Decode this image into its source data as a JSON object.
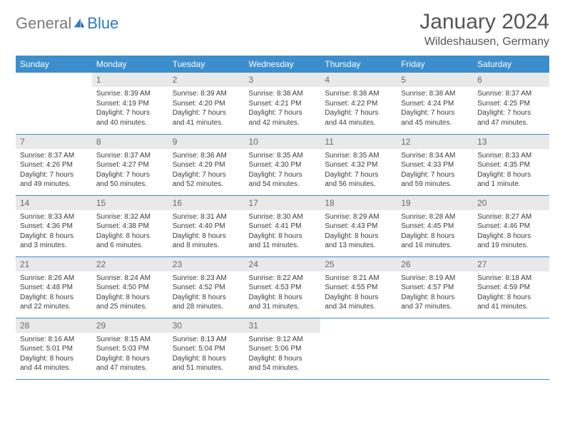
{
  "logo": {
    "part1": "General",
    "part2": "Blue"
  },
  "title": "January 2024",
  "location": "Wildeshausen, Germany",
  "colors": {
    "header_bg": "#3d8ecd",
    "header_text": "#ffffff",
    "daynum_bg": "#e9e9e9",
    "daynum_text": "#6a6a6a",
    "body_text": "#3c3c3c",
    "rule": "#3d8ecd",
    "logo_gray": "#7a7a7a",
    "logo_blue": "#2f7ac0"
  },
  "weekdays": [
    "Sunday",
    "Monday",
    "Tuesday",
    "Wednesday",
    "Thursday",
    "Friday",
    "Saturday"
  ],
  "weeks": [
    [
      null,
      {
        "n": "1",
        "sunrise": "Sunrise: 8:39 AM",
        "sunset": "Sunset: 4:19 PM",
        "daylight1": "Daylight: 7 hours",
        "daylight2": "and 40 minutes."
      },
      {
        "n": "2",
        "sunrise": "Sunrise: 8:39 AM",
        "sunset": "Sunset: 4:20 PM",
        "daylight1": "Daylight: 7 hours",
        "daylight2": "and 41 minutes."
      },
      {
        "n": "3",
        "sunrise": "Sunrise: 8:38 AM",
        "sunset": "Sunset: 4:21 PM",
        "daylight1": "Daylight: 7 hours",
        "daylight2": "and 42 minutes."
      },
      {
        "n": "4",
        "sunrise": "Sunrise: 8:38 AM",
        "sunset": "Sunset: 4:22 PM",
        "daylight1": "Daylight: 7 hours",
        "daylight2": "and 44 minutes."
      },
      {
        "n": "5",
        "sunrise": "Sunrise: 8:38 AM",
        "sunset": "Sunset: 4:24 PM",
        "daylight1": "Daylight: 7 hours",
        "daylight2": "and 45 minutes."
      },
      {
        "n": "6",
        "sunrise": "Sunrise: 8:37 AM",
        "sunset": "Sunset: 4:25 PM",
        "daylight1": "Daylight: 7 hours",
        "daylight2": "and 47 minutes."
      }
    ],
    [
      {
        "n": "7",
        "sunrise": "Sunrise: 8:37 AM",
        "sunset": "Sunset: 4:26 PM",
        "daylight1": "Daylight: 7 hours",
        "daylight2": "and 49 minutes."
      },
      {
        "n": "8",
        "sunrise": "Sunrise: 8:37 AM",
        "sunset": "Sunset: 4:27 PM",
        "daylight1": "Daylight: 7 hours",
        "daylight2": "and 50 minutes."
      },
      {
        "n": "9",
        "sunrise": "Sunrise: 8:36 AM",
        "sunset": "Sunset: 4:29 PM",
        "daylight1": "Daylight: 7 hours",
        "daylight2": "and 52 minutes."
      },
      {
        "n": "10",
        "sunrise": "Sunrise: 8:35 AM",
        "sunset": "Sunset: 4:30 PM",
        "daylight1": "Daylight: 7 hours",
        "daylight2": "and 54 minutes."
      },
      {
        "n": "11",
        "sunrise": "Sunrise: 8:35 AM",
        "sunset": "Sunset: 4:32 PM",
        "daylight1": "Daylight: 7 hours",
        "daylight2": "and 56 minutes."
      },
      {
        "n": "12",
        "sunrise": "Sunrise: 8:34 AM",
        "sunset": "Sunset: 4:33 PM",
        "daylight1": "Daylight: 7 hours",
        "daylight2": "and 59 minutes."
      },
      {
        "n": "13",
        "sunrise": "Sunrise: 8:33 AM",
        "sunset": "Sunset: 4:35 PM",
        "daylight1": "Daylight: 8 hours",
        "daylight2": "and 1 minute."
      }
    ],
    [
      {
        "n": "14",
        "sunrise": "Sunrise: 8:33 AM",
        "sunset": "Sunset: 4:36 PM",
        "daylight1": "Daylight: 8 hours",
        "daylight2": "and 3 minutes."
      },
      {
        "n": "15",
        "sunrise": "Sunrise: 8:32 AM",
        "sunset": "Sunset: 4:38 PM",
        "daylight1": "Daylight: 8 hours",
        "daylight2": "and 6 minutes."
      },
      {
        "n": "16",
        "sunrise": "Sunrise: 8:31 AM",
        "sunset": "Sunset: 4:40 PM",
        "daylight1": "Daylight: 8 hours",
        "daylight2": "and 8 minutes."
      },
      {
        "n": "17",
        "sunrise": "Sunrise: 8:30 AM",
        "sunset": "Sunset: 4:41 PM",
        "daylight1": "Daylight: 8 hours",
        "daylight2": "and 11 minutes."
      },
      {
        "n": "18",
        "sunrise": "Sunrise: 8:29 AM",
        "sunset": "Sunset: 4:43 PM",
        "daylight1": "Daylight: 8 hours",
        "daylight2": "and 13 minutes."
      },
      {
        "n": "19",
        "sunrise": "Sunrise: 8:28 AM",
        "sunset": "Sunset: 4:45 PM",
        "daylight1": "Daylight: 8 hours",
        "daylight2": "and 16 minutes."
      },
      {
        "n": "20",
        "sunrise": "Sunrise: 8:27 AM",
        "sunset": "Sunset: 4:46 PM",
        "daylight1": "Daylight: 8 hours",
        "daylight2": "and 19 minutes."
      }
    ],
    [
      {
        "n": "21",
        "sunrise": "Sunrise: 8:26 AM",
        "sunset": "Sunset: 4:48 PM",
        "daylight1": "Daylight: 8 hours",
        "daylight2": "and 22 minutes."
      },
      {
        "n": "22",
        "sunrise": "Sunrise: 8:24 AM",
        "sunset": "Sunset: 4:50 PM",
        "daylight1": "Daylight: 8 hours",
        "daylight2": "and 25 minutes."
      },
      {
        "n": "23",
        "sunrise": "Sunrise: 8:23 AM",
        "sunset": "Sunset: 4:52 PM",
        "daylight1": "Daylight: 8 hours",
        "daylight2": "and 28 minutes."
      },
      {
        "n": "24",
        "sunrise": "Sunrise: 8:22 AM",
        "sunset": "Sunset: 4:53 PM",
        "daylight1": "Daylight: 8 hours",
        "daylight2": "and 31 minutes."
      },
      {
        "n": "25",
        "sunrise": "Sunrise: 8:21 AM",
        "sunset": "Sunset: 4:55 PM",
        "daylight1": "Daylight: 8 hours",
        "daylight2": "and 34 minutes."
      },
      {
        "n": "26",
        "sunrise": "Sunrise: 8:19 AM",
        "sunset": "Sunset: 4:57 PM",
        "daylight1": "Daylight: 8 hours",
        "daylight2": "and 37 minutes."
      },
      {
        "n": "27",
        "sunrise": "Sunrise: 8:18 AM",
        "sunset": "Sunset: 4:59 PM",
        "daylight1": "Daylight: 8 hours",
        "daylight2": "and 41 minutes."
      }
    ],
    [
      {
        "n": "28",
        "sunrise": "Sunrise: 8:16 AM",
        "sunset": "Sunset: 5:01 PM",
        "daylight1": "Daylight: 8 hours",
        "daylight2": "and 44 minutes."
      },
      {
        "n": "29",
        "sunrise": "Sunrise: 8:15 AM",
        "sunset": "Sunset: 5:03 PM",
        "daylight1": "Daylight: 8 hours",
        "daylight2": "and 47 minutes."
      },
      {
        "n": "30",
        "sunrise": "Sunrise: 8:13 AM",
        "sunset": "Sunset: 5:04 PM",
        "daylight1": "Daylight: 8 hours",
        "daylight2": "and 51 minutes."
      },
      {
        "n": "31",
        "sunrise": "Sunrise: 8:12 AM",
        "sunset": "Sunset: 5:06 PM",
        "daylight1": "Daylight: 8 hours",
        "daylight2": "and 54 minutes."
      },
      null,
      null,
      null
    ]
  ]
}
